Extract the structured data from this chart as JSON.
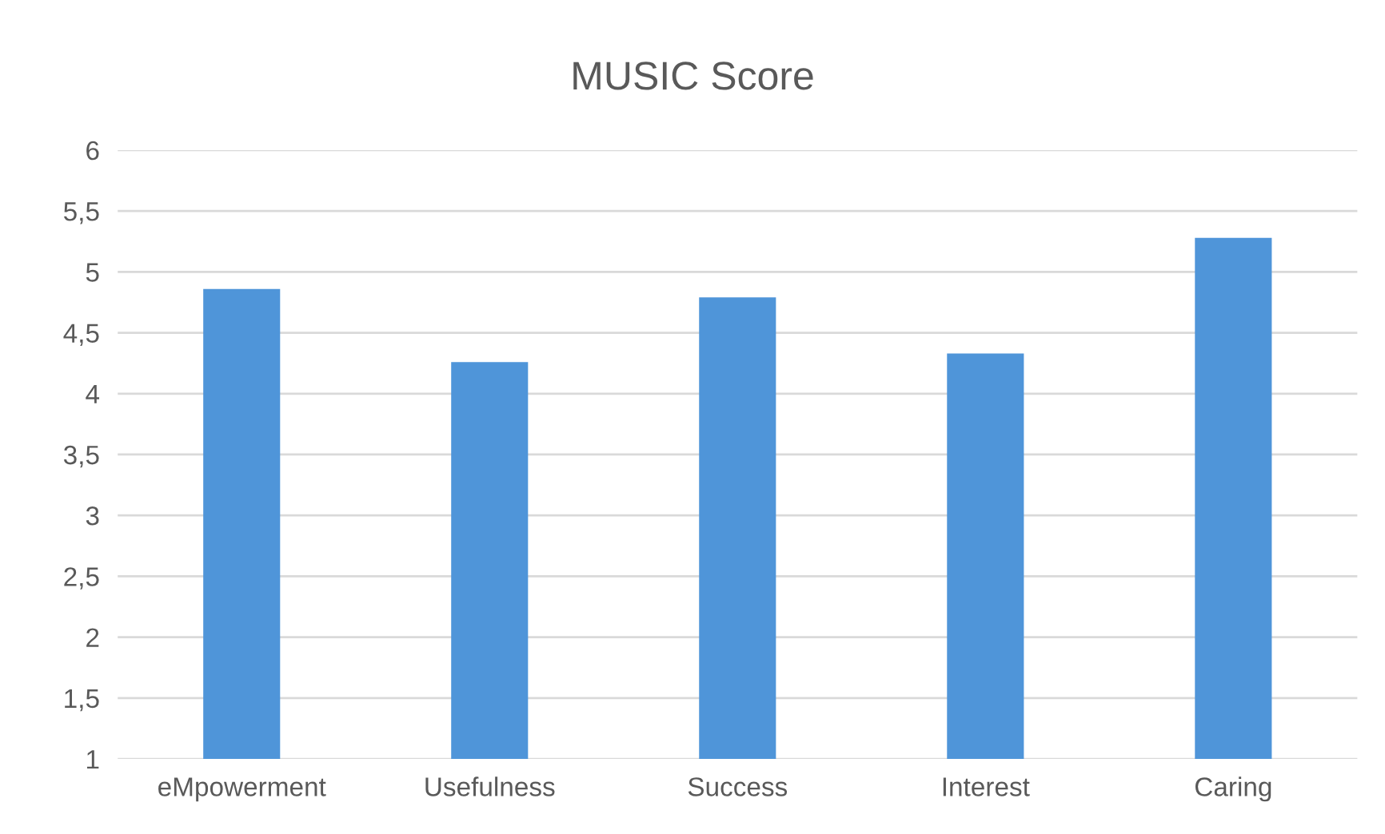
{
  "chart_data": {
    "type": "bar",
    "title": "MUSIC Score",
    "categories": [
      "eMpowerment",
      "Usefulness",
      "Success",
      "Interest",
      "Caring"
    ],
    "values": [
      4.86,
      4.26,
      4.79,
      4.33,
      5.28
    ],
    "color": "#4f95d9",
    "ylim": [
      1,
      6
    ],
    "yticks": [
      1,
      {
        "value": 1.5,
        "label": "1,5"
      },
      2,
      {
        "value": 2.5,
        "label": "2,5"
      },
      3,
      {
        "value": 3.5,
        "label": "3,5"
      },
      4,
      {
        "value": 4.5,
        "label": "4,5"
      },
      5,
      {
        "value": 5.5,
        "label": "5,5"
      },
      6
    ],
    "grid": "y"
  }
}
